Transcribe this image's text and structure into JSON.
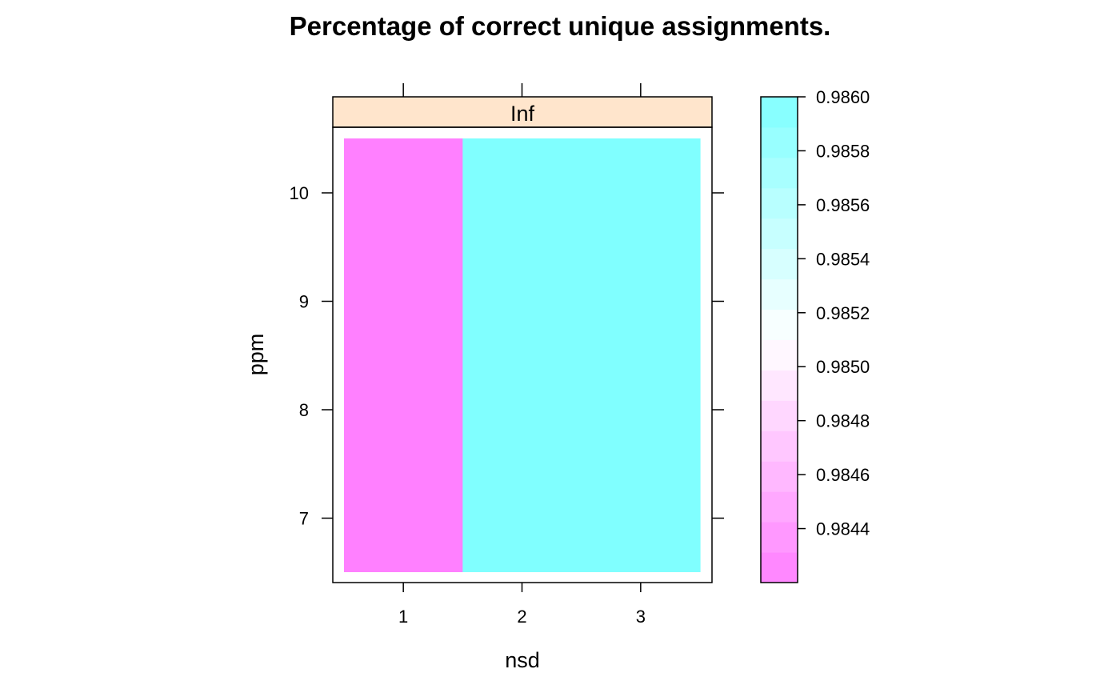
{
  "chart_data": {
    "type": "heatmap",
    "title": "Percentage of correct unique assignments.",
    "panel_strip": "Inf",
    "xlabel": "nsd",
    "ylabel": "ppm",
    "x_categories": [
      1,
      2,
      3
    ],
    "x_ticks": [
      "1",
      "2",
      "3"
    ],
    "y_ticks": [
      "7",
      "8",
      "9",
      "10"
    ],
    "ylim": [
      6.4,
      10.5
    ],
    "x_range": [
      0.5,
      3.5
    ],
    "cells": [
      {
        "nsd": 1,
        "value": 0.9842
      },
      {
        "nsd": 2,
        "value": 0.986
      },
      {
        "nsd": 3,
        "value": 0.986
      }
    ],
    "colorbar": {
      "range": [
        0.9842,
        0.986
      ],
      "tick_labels": [
        "0.9844",
        "0.9846",
        "0.9848",
        "0.9850",
        "0.9852",
        "0.9854",
        "0.9856",
        "0.9858",
        "0.9860"
      ],
      "low_color": "#ff80ff",
      "high_color": "#80ffff"
    },
    "colors": {
      "strip_background": "#ffe5cc"
    }
  }
}
